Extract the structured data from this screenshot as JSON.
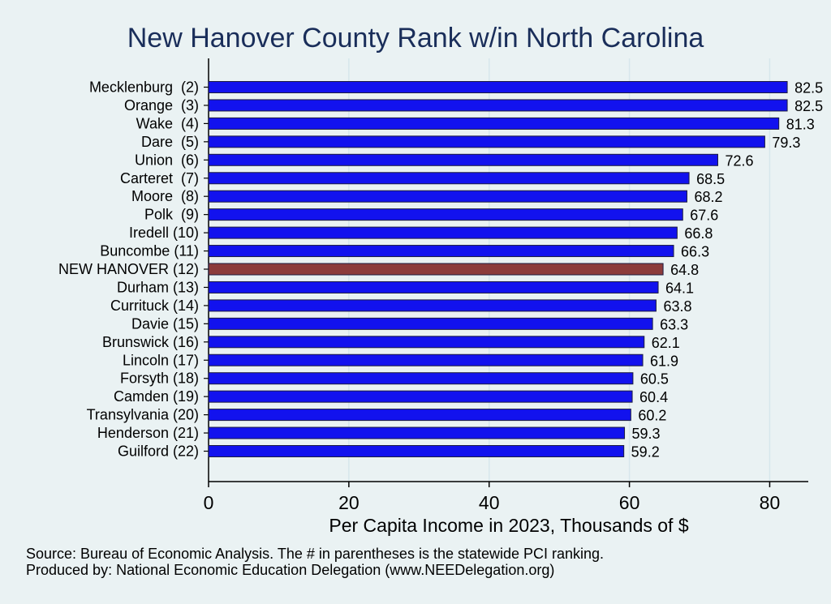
{
  "chart_data": {
    "type": "bar",
    "orientation": "horizontal",
    "title": "New Hanover County Rank w/in North Carolina",
    "xlabel": "Per Capita Income in 2023, Thousands of $",
    "ylabel": "",
    "xlim": [
      0,
      85.5
    ],
    "xticks": [
      0,
      20,
      40,
      60,
      80
    ],
    "grid": true,
    "categories": [
      "Mecklenburg  (2)",
      "Orange  (3)",
      "Wake  (4)",
      "Dare  (5)",
      "Union  (6)",
      "Carteret  (7)",
      "Moore  (8)",
      "Polk  (9)",
      "Iredell (10)",
      "Buncombe (11)",
      "NEW HANOVER (12)",
      "Durham (13)",
      "Currituck (14)",
      "Davie (15)",
      "Brunswick (16)",
      "Lincoln (17)",
      "Forsyth (18)",
      "Camden (19)",
      "Transylvania (20)",
      "Henderson (21)",
      "Guilford (22)"
    ],
    "values": [
      82.5,
      82.5,
      81.3,
      79.3,
      72.6,
      68.5,
      68.2,
      67.6,
      66.8,
      66.3,
      64.8,
      64.1,
      63.8,
      63.3,
      62.1,
      61.9,
      60.5,
      60.4,
      60.2,
      59.3,
      59.2
    ],
    "value_labels": [
      "82.5",
      "82.5",
      "81.3",
      "79.3",
      "72.6",
      "68.5",
      "68.2",
      "67.6",
      "66.8",
      "66.3",
      "64.8",
      "64.1",
      "63.8",
      "63.3",
      "62.1",
      "61.9",
      "60.5",
      "60.4",
      "60.2",
      "59.3",
      "59.2"
    ],
    "highlight_index": 10,
    "colors": {
      "bar": "#1212ee",
      "highlight": "#8c3b3b",
      "title": "#1a2e5a",
      "grid": "#d7e7ec",
      "background": "#eaf2f3"
    }
  },
  "footer": {
    "source": "Source: Bureau of Economic Analysis. The # in parentheses is the statewide PCI ranking.",
    "producer": "Produced by: National Economic Education Delegation (www.NEEDelegation.org)"
  }
}
